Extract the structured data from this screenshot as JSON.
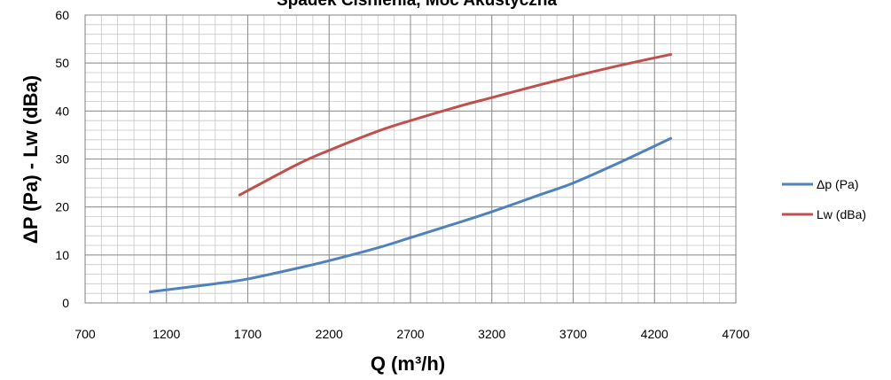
{
  "chart_data": {
    "type": "line",
    "title": "Spadek Ciśnienia, Moc Akustyczna",
    "xlabel": "Q (m³/h)",
    "ylabel": "ΔP (Pa) - Lw (dBa)",
    "xlim": [
      700,
      4700
    ],
    "ylim": [
      0,
      60
    ],
    "x_ticks": [
      "700",
      "1200",
      "1700",
      "2200",
      "2700",
      "3200",
      "3700",
      "4200",
      "4700"
    ],
    "y_ticks": [
      "0",
      "10",
      "20",
      "30",
      "40",
      "50",
      "60"
    ],
    "grid": true,
    "legend_position": "right",
    "series": [
      {
        "name": "Δp (Pa)",
        "color": "#4f81bd",
        "x": [
          1100,
          1500,
          1700,
          2000,
          2200,
          2500,
          2700,
          3000,
          3200,
          3500,
          3700,
          4000,
          4300
        ],
        "y": [
          2.3,
          4.0,
          5.0,
          7.2,
          8.8,
          11.5,
          13.6,
          16.8,
          19.0,
          22.6,
          25.0,
          29.5,
          34.3
        ]
      },
      {
        "name": "Lw (dBa)",
        "color": "#c0504d",
        "x": [
          1650,
          2000,
          2200,
          2500,
          2700,
          3000,
          3200,
          3500,
          3700,
          4000,
          4300
        ],
        "y": [
          22.5,
          28.8,
          31.8,
          35.8,
          38.0,
          41.0,
          42.8,
          45.5,
          47.2,
          49.6,
          51.8
        ]
      }
    ]
  }
}
